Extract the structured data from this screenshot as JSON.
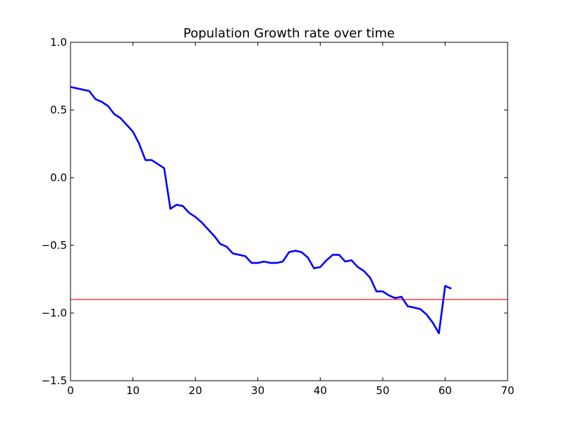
{
  "chart_data": {
    "type": "line",
    "title": "Population Growth rate over time",
    "xlabel": "",
    "ylabel": "",
    "xlim": [
      0,
      70
    ],
    "ylim": [
      -1.5,
      1.0
    ],
    "x_ticks": [
      0,
      10,
      20,
      30,
      40,
      50,
      60,
      70
    ],
    "x_tick_labels": [
      "0",
      "10",
      "20",
      "30",
      "40",
      "50",
      "60",
      "70"
    ],
    "y_ticks": [
      1.0,
      0.5,
      0.0,
      -0.5,
      -1.0,
      -1.5
    ],
    "y_tick_labels": [
      "1.0",
      "0.5",
      "0.0",
      "−0.5",
      "−1.0",
      "−1.5"
    ],
    "grid": false,
    "series": [
      {
        "color": "#0000ff",
        "x": [
          0,
          1,
          2,
          3,
          4,
          5,
          6,
          7,
          8,
          9,
          10,
          11,
          12,
          13,
          14,
          15,
          16,
          17,
          18,
          19,
          20,
          21,
          22,
          23,
          24,
          25,
          26,
          27,
          28,
          29,
          30,
          31,
          32,
          33,
          34,
          35,
          36,
          37,
          38,
          39,
          40,
          41,
          42,
          43,
          44,
          45,
          46,
          47,
          48,
          49,
          50,
          51,
          52,
          53,
          54,
          55,
          56,
          57,
          58,
          59,
          60,
          61
        ],
        "y": [
          0.67,
          0.66,
          0.65,
          0.64,
          0.58,
          0.56,
          0.53,
          0.47,
          0.44,
          0.39,
          0.34,
          0.25,
          0.13,
          0.13,
          0.1,
          0.07,
          -0.23,
          -0.2,
          -0.21,
          -0.26,
          -0.29,
          -0.33,
          -0.38,
          -0.43,
          -0.49,
          -0.51,
          -0.56,
          -0.57,
          -0.58,
          -0.63,
          -0.63,
          -0.62,
          -0.63,
          -0.63,
          -0.62,
          -0.55,
          -0.54,
          -0.55,
          -0.59,
          -0.67,
          -0.66,
          -0.61,
          -0.57,
          -0.57,
          -0.62,
          -0.61,
          -0.66,
          -0.69,
          -0.74,
          -0.84,
          -0.84,
          -0.87,
          -0.89,
          -0.88,
          -0.95,
          -0.96,
          -0.97,
          -1.01,
          -1.07,
          -1.15,
          -0.8,
          -0.82
        ]
      }
    ],
    "hlines": [
      {
        "y": -0.9,
        "color": "#ff0000"
      }
    ]
  }
}
